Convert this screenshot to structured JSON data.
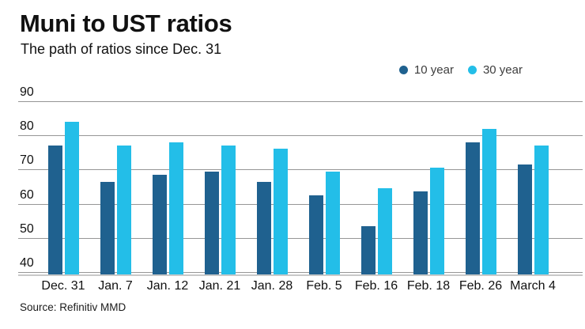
{
  "header": {
    "title": "Muni to UST ratios",
    "subtitle": "The path of ratios since Dec. 31"
  },
  "legend": [
    {
      "label": "10 year",
      "color": "#1f618f"
    },
    {
      "label": "30 year",
      "color": "#23bee8"
    }
  ],
  "source": "Source: Refinitiv MMD",
  "colors": {
    "series_10yr": "#1f618f",
    "series_30yr": "#23bee8",
    "gridline": "#969696",
    "axisline": "#c9c9c9",
    "text": "#111111"
  },
  "chart_data": {
    "type": "bar",
    "title": "Muni to UST ratios",
    "subtitle": "The path of ratios since Dec. 31",
    "categories": [
      "Dec. 31",
      "Jan. 7",
      "Jan. 12",
      "Jan. 21",
      "Jan. 28",
      "Feb. 5",
      "Feb. 16",
      "Feb. 18",
      "Feb. 26",
      "March 4"
    ],
    "series": [
      {
        "name": "10 year",
        "color": "#1f618f",
        "values": [
          77,
          66.5,
          68.5,
          69.5,
          66.5,
          62.5,
          53.5,
          63.5,
          78,
          71.5
        ]
      },
      {
        "name": "30 year",
        "color": "#23bee8",
        "values": [
          84,
          77,
          78,
          77,
          76,
          69.5,
          64.5,
          70.5,
          82,
          77
        ]
      }
    ],
    "xlabel": "",
    "ylabel": "",
    "ylim": [
      40,
      90
    ],
    "yticks": [
      90,
      80,
      70,
      60,
      50,
      40
    ],
    "grid": true,
    "legend_position": "top-right"
  }
}
